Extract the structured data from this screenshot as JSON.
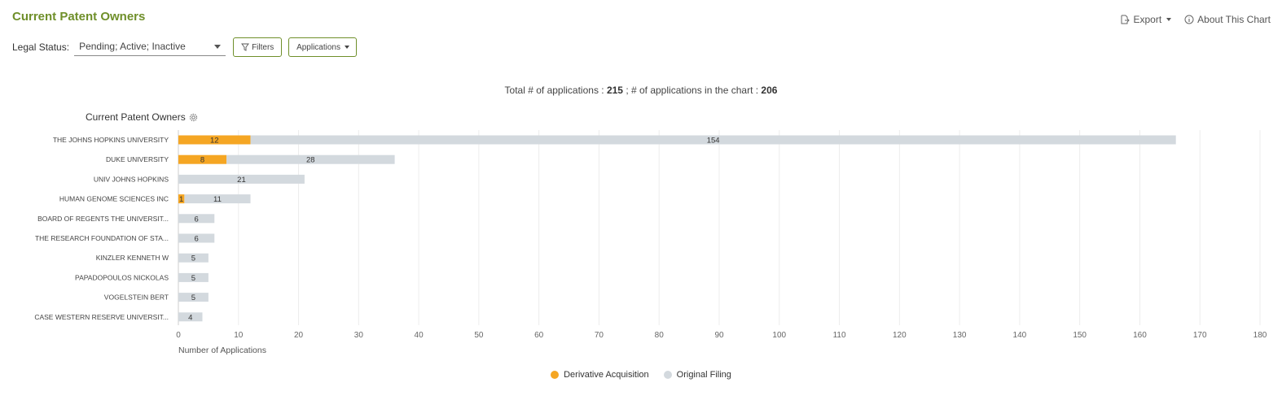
{
  "header": {
    "title": "Current Patent Owners",
    "export_label": "Export",
    "about_label": "About This Chart"
  },
  "filters": {
    "legal_status_label": "Legal Status:",
    "legal_status_value": "Pending; Active; Inactive",
    "filters_button": "Filters",
    "applications_button": "Applications"
  },
  "summary": {
    "total_label": "Total # of applications : ",
    "total_value": "215",
    "sep": " ; # of applications in the chart : ",
    "chart_value": "206"
  },
  "owners_label": "Current Patent Owners",
  "colors": {
    "derivative": "#f5a623",
    "original": "#d3d9de",
    "accent": "#6f8f2a"
  },
  "chart_data": {
    "type": "bar",
    "orientation": "horizontal",
    "stacked": true,
    "categories": [
      "THE JOHNS HOPKINS UNIVERSITY",
      "DUKE UNIVERSITY",
      "UNIV JOHNS HOPKINS",
      "HUMAN GENOME SCIENCES INC",
      "BOARD OF REGENTS THE UNIVERSIT...",
      "THE RESEARCH FOUNDATION OF STA...",
      "KINZLER KENNETH W",
      "PAPADOPOULOS NICKOLAS",
      "VOGELSTEIN BERT",
      "CASE WESTERN RESERVE UNIVERSIT..."
    ],
    "series": [
      {
        "name": "Derivative Acquisition",
        "values": [
          12,
          8,
          0,
          1,
          0,
          0,
          0,
          0,
          0,
          0
        ]
      },
      {
        "name": "Original Filing",
        "values": [
          154,
          28,
          21,
          11,
          6,
          6,
          5,
          5,
          5,
          4
        ]
      }
    ],
    "xlabel": "Number of Applications",
    "ylabel": "Current Patent Owners",
    "xlim": [
      0,
      180
    ],
    "xticks": [
      0,
      10,
      20,
      30,
      40,
      50,
      60,
      70,
      80,
      90,
      100,
      110,
      120,
      130,
      140,
      150,
      160,
      170,
      180
    ],
    "grid": true,
    "legend_position": "bottom-center"
  }
}
